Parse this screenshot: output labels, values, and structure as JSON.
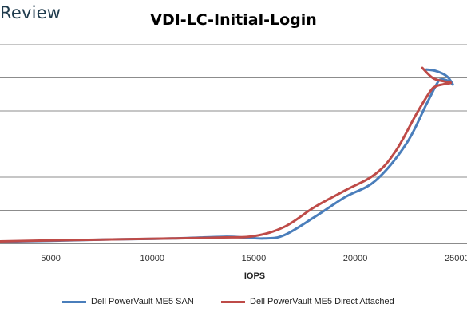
{
  "header": {
    "brand": "Review"
  },
  "chart_data": {
    "type": "line",
    "title": "VDI-LC-Initial-Login",
    "xlabel": "IOPS",
    "ylabel": "",
    "x_ticks": [
      5000,
      10000,
      15000,
      20000,
      25000
    ],
    "xlim": [
      2500,
      25500
    ],
    "ylim": [
      0,
      6
    ],
    "grid": true,
    "legend_position": "bottom",
    "series": [
      {
        "name": "Dell PowerVault ME5 SAN",
        "color": "#4a7ebb",
        "points": [
          [
            2500,
            0.05
          ],
          [
            5000,
            0.08
          ],
          [
            8000,
            0.12
          ],
          [
            11000,
            0.15
          ],
          [
            13500,
            0.2
          ],
          [
            14500,
            0.18
          ],
          [
            15500,
            0.15
          ],
          [
            16500,
            0.25
          ],
          [
            18000,
            0.8
          ],
          [
            19500,
            1.4
          ],
          [
            21000,
            1.9
          ],
          [
            22500,
            3.0
          ],
          [
            23500,
            4.2
          ],
          [
            24000,
            4.8
          ],
          [
            24200,
            4.95
          ],
          [
            24600,
            4.9
          ],
          [
            24800,
            4.8
          ],
          [
            24500,
            5.05
          ],
          [
            24000,
            5.2
          ],
          [
            23500,
            5.25
          ]
        ]
      },
      {
        "name": "Dell PowerVault ME5 Direct Attached",
        "color": "#be4b48",
        "points": [
          [
            2500,
            0.06
          ],
          [
            5000,
            0.09
          ],
          [
            8000,
            0.12
          ],
          [
            11000,
            0.15
          ],
          [
            13500,
            0.18
          ],
          [
            15000,
            0.22
          ],
          [
            16500,
            0.5
          ],
          [
            18000,
            1.1
          ],
          [
            19500,
            1.6
          ],
          [
            21000,
            2.1
          ],
          [
            22000,
            2.8
          ],
          [
            23000,
            3.9
          ],
          [
            23700,
            4.6
          ],
          [
            24000,
            4.75
          ],
          [
            24300,
            4.8
          ],
          [
            24700,
            4.85
          ],
          [
            24300,
            4.9
          ],
          [
            23800,
            5.0
          ],
          [
            23300,
            5.3
          ]
        ]
      }
    ]
  }
}
